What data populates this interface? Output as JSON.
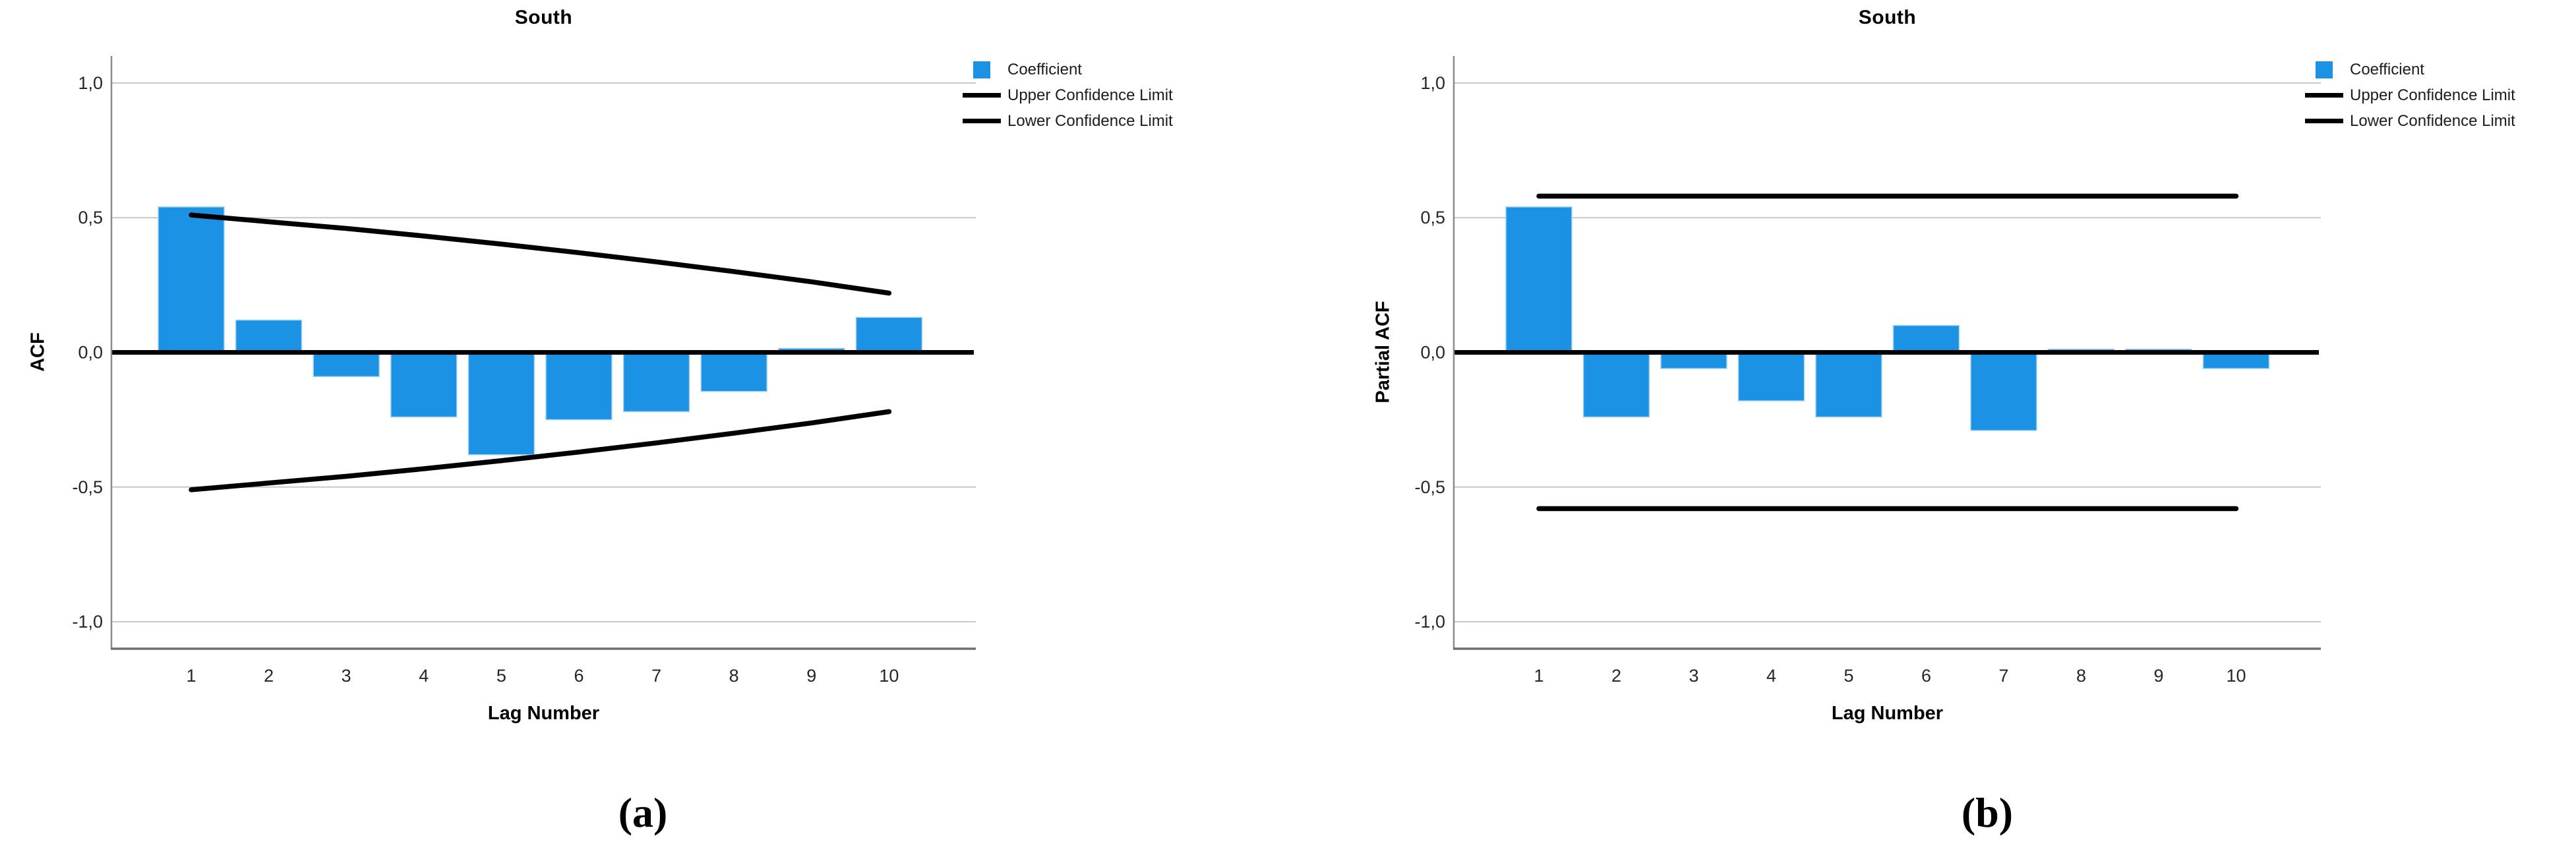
{
  "page": {
    "background": "#ffffff"
  },
  "colors": {
    "bar_fill": "#1B92E4",
    "bar_border": "#A8D2F0",
    "confidence_line": "#000000",
    "zero_line": "#000000",
    "gridline": "#C7C7C7",
    "y_axis_line": "#8A8A8A",
    "x_axis_line": "#6F6F6F",
    "tick_text": "#262626"
  },
  "chart_data": [
    {
      "id": "acf-south",
      "type": "bar",
      "title": "South",
      "xlabel": "Lag Number",
      "ylabel": "ACF",
      "caption": "(a)",
      "grid": "horizontal",
      "legend_position": "top-right",
      "ylim": [
        -1.1,
        1.1
      ],
      "yticks": {
        "values": [
          1.0,
          0.5,
          0.0,
          -0.5,
          -1.0
        ],
        "labels": [
          "1,0",
          "0,5",
          "0,0",
          "-0,5",
          "-1,0"
        ]
      },
      "categories": [
        1,
        2,
        3,
        4,
        5,
        6,
        7,
        8,
        9,
        10
      ],
      "series": [
        {
          "name": "Coefficient",
          "kind": "bar",
          "values": [
            0.54,
            0.12,
            -0.09,
            -0.24,
            -0.38,
            -0.25,
            -0.22,
            -0.145,
            0.015,
            0.13
          ]
        },
        {
          "name": "Upper Confidence Limit",
          "kind": "line",
          "values": [
            0.51,
            0.485,
            0.46,
            0.432,
            0.402,
            0.37,
            0.336,
            0.3,
            0.262,
            0.22
          ]
        },
        {
          "name": "Lower Confidence Limit",
          "kind": "line",
          "values": [
            -0.51,
            -0.485,
            -0.46,
            -0.432,
            -0.402,
            -0.37,
            -0.336,
            -0.3,
            -0.262,
            -0.22
          ]
        }
      ]
    },
    {
      "id": "pacf-south",
      "type": "bar",
      "title": "South",
      "xlabel": "Lag Number",
      "ylabel": "Partial ACF",
      "caption": "(b)",
      "grid": "horizontal",
      "legend_position": "top-right",
      "ylim": [
        -1.1,
        1.1
      ],
      "yticks": {
        "values": [
          1.0,
          0.5,
          0.0,
          -0.5,
          -1.0
        ],
        "labels": [
          "1,0",
          "0,5",
          "0,0",
          "-0,5",
          "-1,0"
        ]
      },
      "categories": [
        1,
        2,
        3,
        4,
        5,
        6,
        7,
        8,
        9,
        10
      ],
      "series": [
        {
          "name": "Coefficient",
          "kind": "bar",
          "values": [
            0.54,
            -0.24,
            -0.06,
            -0.18,
            -0.24,
            0.1,
            -0.29,
            0.012,
            0.012,
            -0.06
          ]
        },
        {
          "name": "Upper Confidence Limit",
          "kind": "line",
          "values": [
            0.58,
            0.58,
            0.58,
            0.58,
            0.58,
            0.58,
            0.58,
            0.58,
            0.58,
            0.58
          ]
        },
        {
          "name": "Lower Confidence Limit",
          "kind": "line",
          "values": [
            -0.58,
            -0.58,
            -0.58,
            -0.58,
            -0.58,
            -0.58,
            -0.58,
            -0.58,
            -0.58,
            -0.58
          ]
        }
      ]
    }
  ]
}
